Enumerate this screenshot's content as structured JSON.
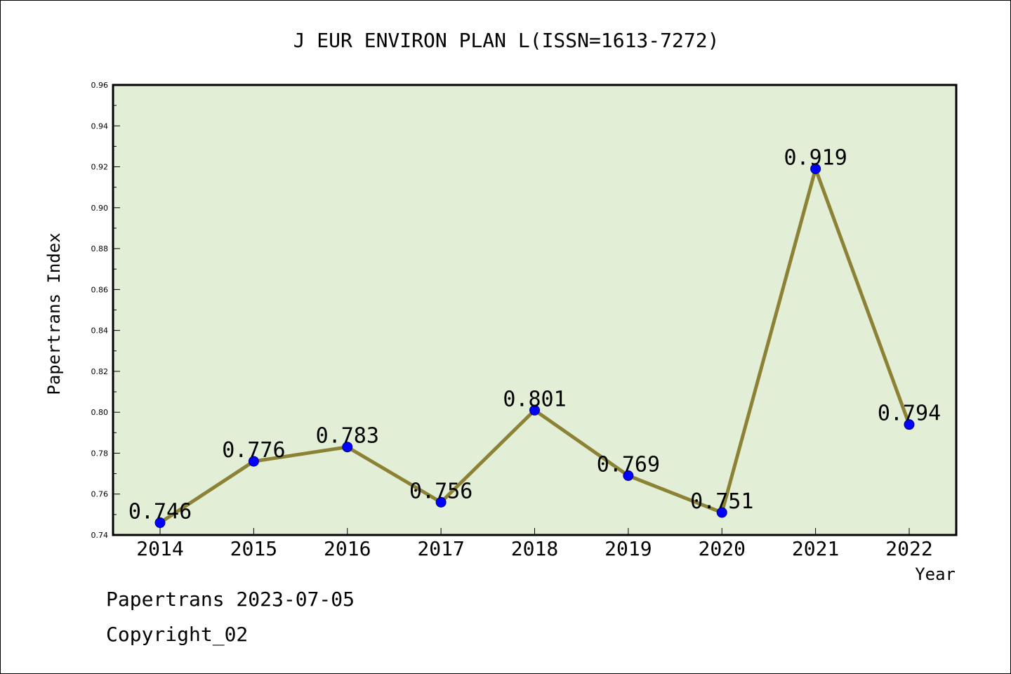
{
  "chart_data": {
    "type": "line",
    "title": "J EUR ENVIRON PLAN L(ISSN=1613-7272)",
    "xlabel": "Year",
    "ylabel": "Papertrans Index",
    "categories": [
      "2014",
      "2015",
      "2016",
      "2017",
      "2018",
      "2019",
      "2020",
      "2021",
      "2022"
    ],
    "series": [
      {
        "values": [
          0.746,
          0.776,
          0.783,
          0.756,
          0.801,
          0.769,
          0.751,
          0.919,
          0.794
        ]
      }
    ],
    "data_labels": [
      "0.746",
      "0.776",
      "0.783",
      "0.756",
      "0.801",
      "0.769",
      "0.751",
      "0.919",
      "0.794"
    ],
    "ylim": [
      0.74,
      0.96
    ],
    "yticks": [
      0.74,
      0.76,
      0.78,
      0.8,
      0.82,
      0.84,
      0.86,
      0.88,
      0.9,
      0.92,
      0.94,
      0.96
    ],
    "ytick_labels": [
      "0.74",
      "0.76",
      "0.78",
      "0.80",
      "0.82",
      "0.84",
      "0.86",
      "0.88",
      "0.90",
      "0.92",
      "0.94",
      "0.96"
    ],
    "grid": false,
    "colors": {
      "plot_background": "#e2efd6",
      "line": "#8b8236",
      "marker": "#0000ff"
    }
  },
  "footer": {
    "line1": "Papertrans 2023-07-05",
    "line2": "Copyright_02"
  }
}
